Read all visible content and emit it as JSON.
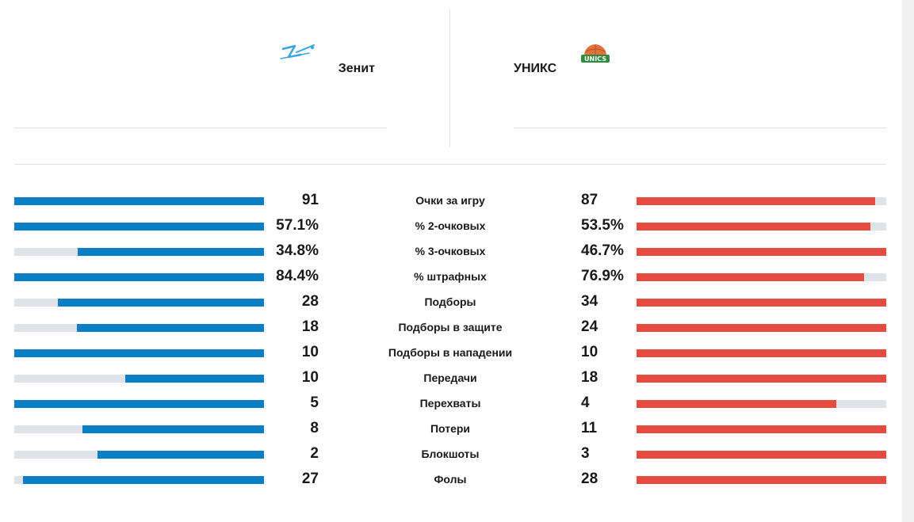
{
  "colors": {
    "home": "#0a7fc7",
    "away": "#e94a40",
    "track": "#dfe2e6"
  },
  "teams": {
    "home": {
      "name": "Зенит",
      "logo": "zenit-logo"
    },
    "away": {
      "name": "УНИКС",
      "logo": "unics-logo",
      "logo_text": "UNICS"
    }
  },
  "stats": [
    {
      "label": "Очки за игру",
      "home": "91",
      "away": "87",
      "home_share": 1.0,
      "away_share": 0.956
    },
    {
      "label": "% 2-очковых",
      "home": "57.1%",
      "away": "53.5%",
      "home_share": 1.0,
      "away_share": 0.937
    },
    {
      "label": "% 3-очковых",
      "home": "34.8%",
      "away": "46.7%",
      "home_share": 0.745,
      "away_share": 1.0
    },
    {
      "label": "% штрафных",
      "home": "84.4%",
      "away": "76.9%",
      "home_share": 1.0,
      "away_share": 0.911
    },
    {
      "label": "Подборы",
      "home": "28",
      "away": "34",
      "home_share": 0.824,
      "away_share": 1.0
    },
    {
      "label": "Подборы в защите",
      "home": "18",
      "away": "24",
      "home_share": 0.75,
      "away_share": 1.0
    },
    {
      "label": "Подборы в нападении",
      "home": "10",
      "away": "10",
      "home_share": 1.0,
      "away_share": 1.0
    },
    {
      "label": "Передачи",
      "home": "10",
      "away": "18",
      "home_share": 0.556,
      "away_share": 1.0
    },
    {
      "label": "Перехваты",
      "home": "5",
      "away": "4",
      "home_share": 1.0,
      "away_share": 0.8
    },
    {
      "label": "Потери",
      "home": "8",
      "away": "11",
      "home_share": 0.727,
      "away_share": 1.0
    },
    {
      "label": "Блокшоты",
      "home": "2",
      "away": "3",
      "home_share": 0.667,
      "away_share": 1.0
    },
    {
      "label": "Фолы",
      "home": "27",
      "away": "28",
      "home_share": 0.964,
      "away_share": 1.0
    }
  ]
}
